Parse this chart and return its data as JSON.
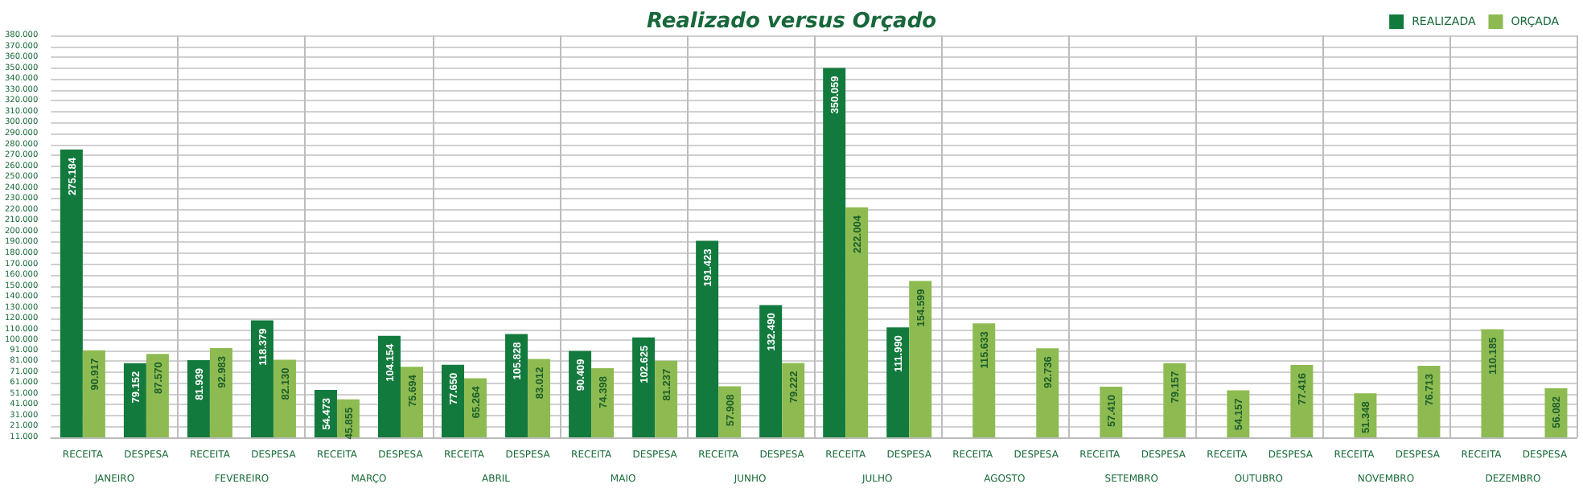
{
  "chart_data": {
    "type": "bar",
    "title": "Realizado versus Orçado",
    "categories": [
      "RECEITA",
      "DESPESA",
      "RECEITA",
      "DESPESA",
      "RECEITA",
      "DESPESA",
      "RECEITA",
      "DESPESA",
      "RECEITA",
      "DESPESA",
      "RECEITA",
      "DESPESA",
      "RECEITA",
      "DESPESA",
      "RECEITA",
      "DESPESA",
      "RECEITA",
      "DESPESA",
      "RECEITA",
      "DESPESA",
      "RECEITA",
      "DESPESA",
      "RECEITA",
      "DESPESA"
    ],
    "annotations": [
      "JANEIRO",
      "FEVEREIRO",
      "MARÇO",
      "ABRIL",
      "MAIO",
      "JUNHO",
      "JULHO",
      "AGOSTO",
      "SETEMBRO",
      "OUTUBRO",
      "NOVEMBRO",
      "DEZEMBRO"
    ],
    "series": [
      {
        "name": "REALIZADA",
        "color": "#137a3e",
        "values": [
          275184,
          79152,
          81939,
          118379,
          54473,
          104154,
          77650,
          105828,
          90409,
          102625,
          191423,
          132490,
          350059,
          111990,
          null,
          null,
          null,
          null,
          null,
          null,
          null,
          null,
          null,
          null
        ],
        "value_labels": [
          "275.184",
          "79.152",
          "81.939",
          "118.379",
          "54.473",
          "104.154",
          "77.650",
          "105.828",
          "90.409",
          "102.625",
          "191.423",
          "132.490",
          "350.059",
          "111.990",
          null,
          null,
          null,
          null,
          null,
          null,
          null,
          null,
          null,
          null
        ]
      },
      {
        "name": "ORÇADA",
        "color": "#8dbb52",
        "values": [
          90917,
          87570,
          92983,
          82130,
          45855,
          75694,
          65264,
          83012,
          74398,
          81237,
          57908,
          79222,
          222004,
          154599,
          115633,
          92736,
          57410,
          79157,
          54157,
          77416,
          51348,
          76713,
          110185,
          56082
        ],
        "value_labels": [
          "90.917",
          "87.570",
          "92.983",
          "82.130",
          "45.855",
          "75.694",
          "65.264",
          "83.012",
          "74.398",
          "81.237",
          "57.908",
          "79.222",
          "222.004",
          "154.599",
          "115.633",
          "92.736",
          "57.410",
          "79.157",
          "54.157",
          "77.416",
          "51.348",
          "76.713",
          "110.185",
          "56.082"
        ]
      }
    ],
    "ylim": [
      11000,
      380000
    ],
    "yticks": [
      {
        "value": 11000,
        "label": "11.000"
      },
      {
        "value": 21000,
        "label": "21.000"
      },
      {
        "value": 31000,
        "label": "31.000"
      },
      {
        "value": 41000,
        "label": "41.000"
      },
      {
        "value": 51000,
        "label": "51.000"
      },
      {
        "value": 61000,
        "label": "61.000"
      },
      {
        "value": 71000,
        "label": "71.000"
      },
      {
        "value": 81000,
        "label": "81.000"
      },
      {
        "value": 91000,
        "label": "91.000"
      },
      {
        "value": 100000,
        "label": "100.000"
      },
      {
        "value": 110000,
        "label": "110.000"
      },
      {
        "value": 120000,
        "label": "120.000"
      },
      {
        "value": 130000,
        "label": "130.000"
      },
      {
        "value": 140000,
        "label": "140.000"
      },
      {
        "value": 150000,
        "label": "150.000"
      },
      {
        "value": 160000,
        "label": "160.000"
      },
      {
        "value": 170000,
        "label": "170.000"
      },
      {
        "value": 180000,
        "label": "180.000"
      },
      {
        "value": 190000,
        "label": "190.000"
      },
      {
        "value": 200000,
        "label": "200.000"
      },
      {
        "value": 210000,
        "label": "210.000"
      },
      {
        "value": 220000,
        "label": "220.000"
      },
      {
        "value": 230000,
        "label": "230.000"
      },
      {
        "value": 240000,
        "label": "240.000"
      },
      {
        "value": 250000,
        "label": "250.000"
      },
      {
        "value": 260000,
        "label": "260.000"
      },
      {
        "value": 270000,
        "label": "270.000"
      },
      {
        "value": 280000,
        "label": "280.000"
      },
      {
        "value": 290000,
        "label": "290.000"
      },
      {
        "value": 300000,
        "label": "300.000"
      },
      {
        "value": 310000,
        "label": "310.000"
      },
      {
        "value": 320000,
        "label": "320.000"
      },
      {
        "value": 330000,
        "label": "330.000"
      },
      {
        "value": 340000,
        "label": "340.000"
      },
      {
        "value": 350000,
        "label": "350.000"
      },
      {
        "value": 360000,
        "label": "360.000"
      },
      {
        "value": 370000,
        "label": "370.000"
      },
      {
        "value": 380000,
        "label": "380.000"
      }
    ],
    "grid": "y",
    "legend": "top right"
  }
}
